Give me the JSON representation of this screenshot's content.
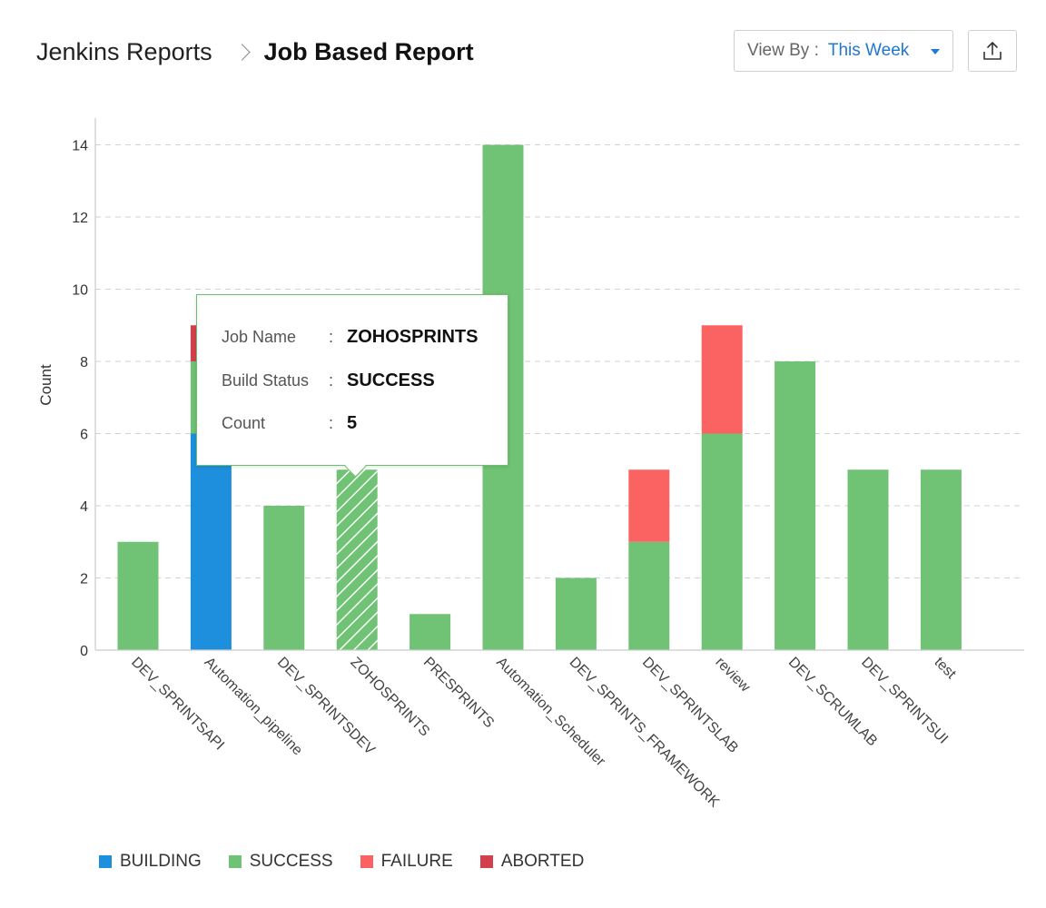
{
  "breadcrumb": {
    "root": "Jenkins Reports",
    "current": "Job Based Report"
  },
  "view_by": {
    "label": "View By :",
    "value": "This Week"
  },
  "icons": {
    "export": "export-upload-icon",
    "dropdown": "chevron-down-icon",
    "breadcrumb_separator": "chevron-right-icon"
  },
  "colors": {
    "building": "#1e8fdc",
    "success": "#70c274",
    "failure": "#fb6363",
    "aborted": "#d2404c"
  },
  "tooltip": {
    "rows": [
      {
        "key": "Job Name",
        "value": "ZOHOSPRINTS"
      },
      {
        "key": "Build Status",
        "value": "SUCCESS"
      },
      {
        "key": "Count",
        "value": "5"
      }
    ]
  },
  "chart_data": {
    "type": "bar",
    "stacked": true,
    "ylabel": "Count",
    "xlabel": "",
    "ylim": [
      0,
      14
    ],
    "yticks": [
      0,
      2,
      4,
      6,
      8,
      10,
      12,
      14
    ],
    "grid": true,
    "legend_position": "bottom-left",
    "categories": [
      "DEV_SPRINTSAPI",
      "Automation_pipeline",
      "DEV_SPRINTSDEV",
      "ZOHOSPRINTS",
      "PRESPRINTS",
      "Automation_Scheduler",
      "DEV_SPRINTS_FRAMEWORK",
      "DEV_SPRINTSLAB",
      "review",
      "DEV_SCRUMLAB",
      "DEV_SPRINTSUI",
      "test"
    ],
    "series": [
      {
        "name": "BUILDING",
        "color": "#1e8fdc",
        "values": [
          0,
          6,
          0,
          0,
          0,
          0,
          0,
          0,
          0,
          0,
          0,
          0
        ]
      },
      {
        "name": "SUCCESS",
        "color": "#70c274",
        "values": [
          3,
          2,
          4,
          5,
          1,
          14,
          2,
          3,
          6,
          8,
          5,
          5
        ]
      },
      {
        "name": "FAILURE",
        "color": "#fb6363",
        "values": [
          0,
          0,
          0,
          0,
          0,
          0,
          0,
          2,
          3,
          0,
          0,
          0
        ]
      },
      {
        "name": "ABORTED",
        "color": "#d2404c",
        "values": [
          0,
          1,
          0,
          0,
          0,
          0,
          0,
          0,
          0,
          0,
          0,
          0
        ]
      }
    ],
    "highlighted": {
      "category": "ZOHOSPRINTS",
      "series": "SUCCESS"
    }
  }
}
